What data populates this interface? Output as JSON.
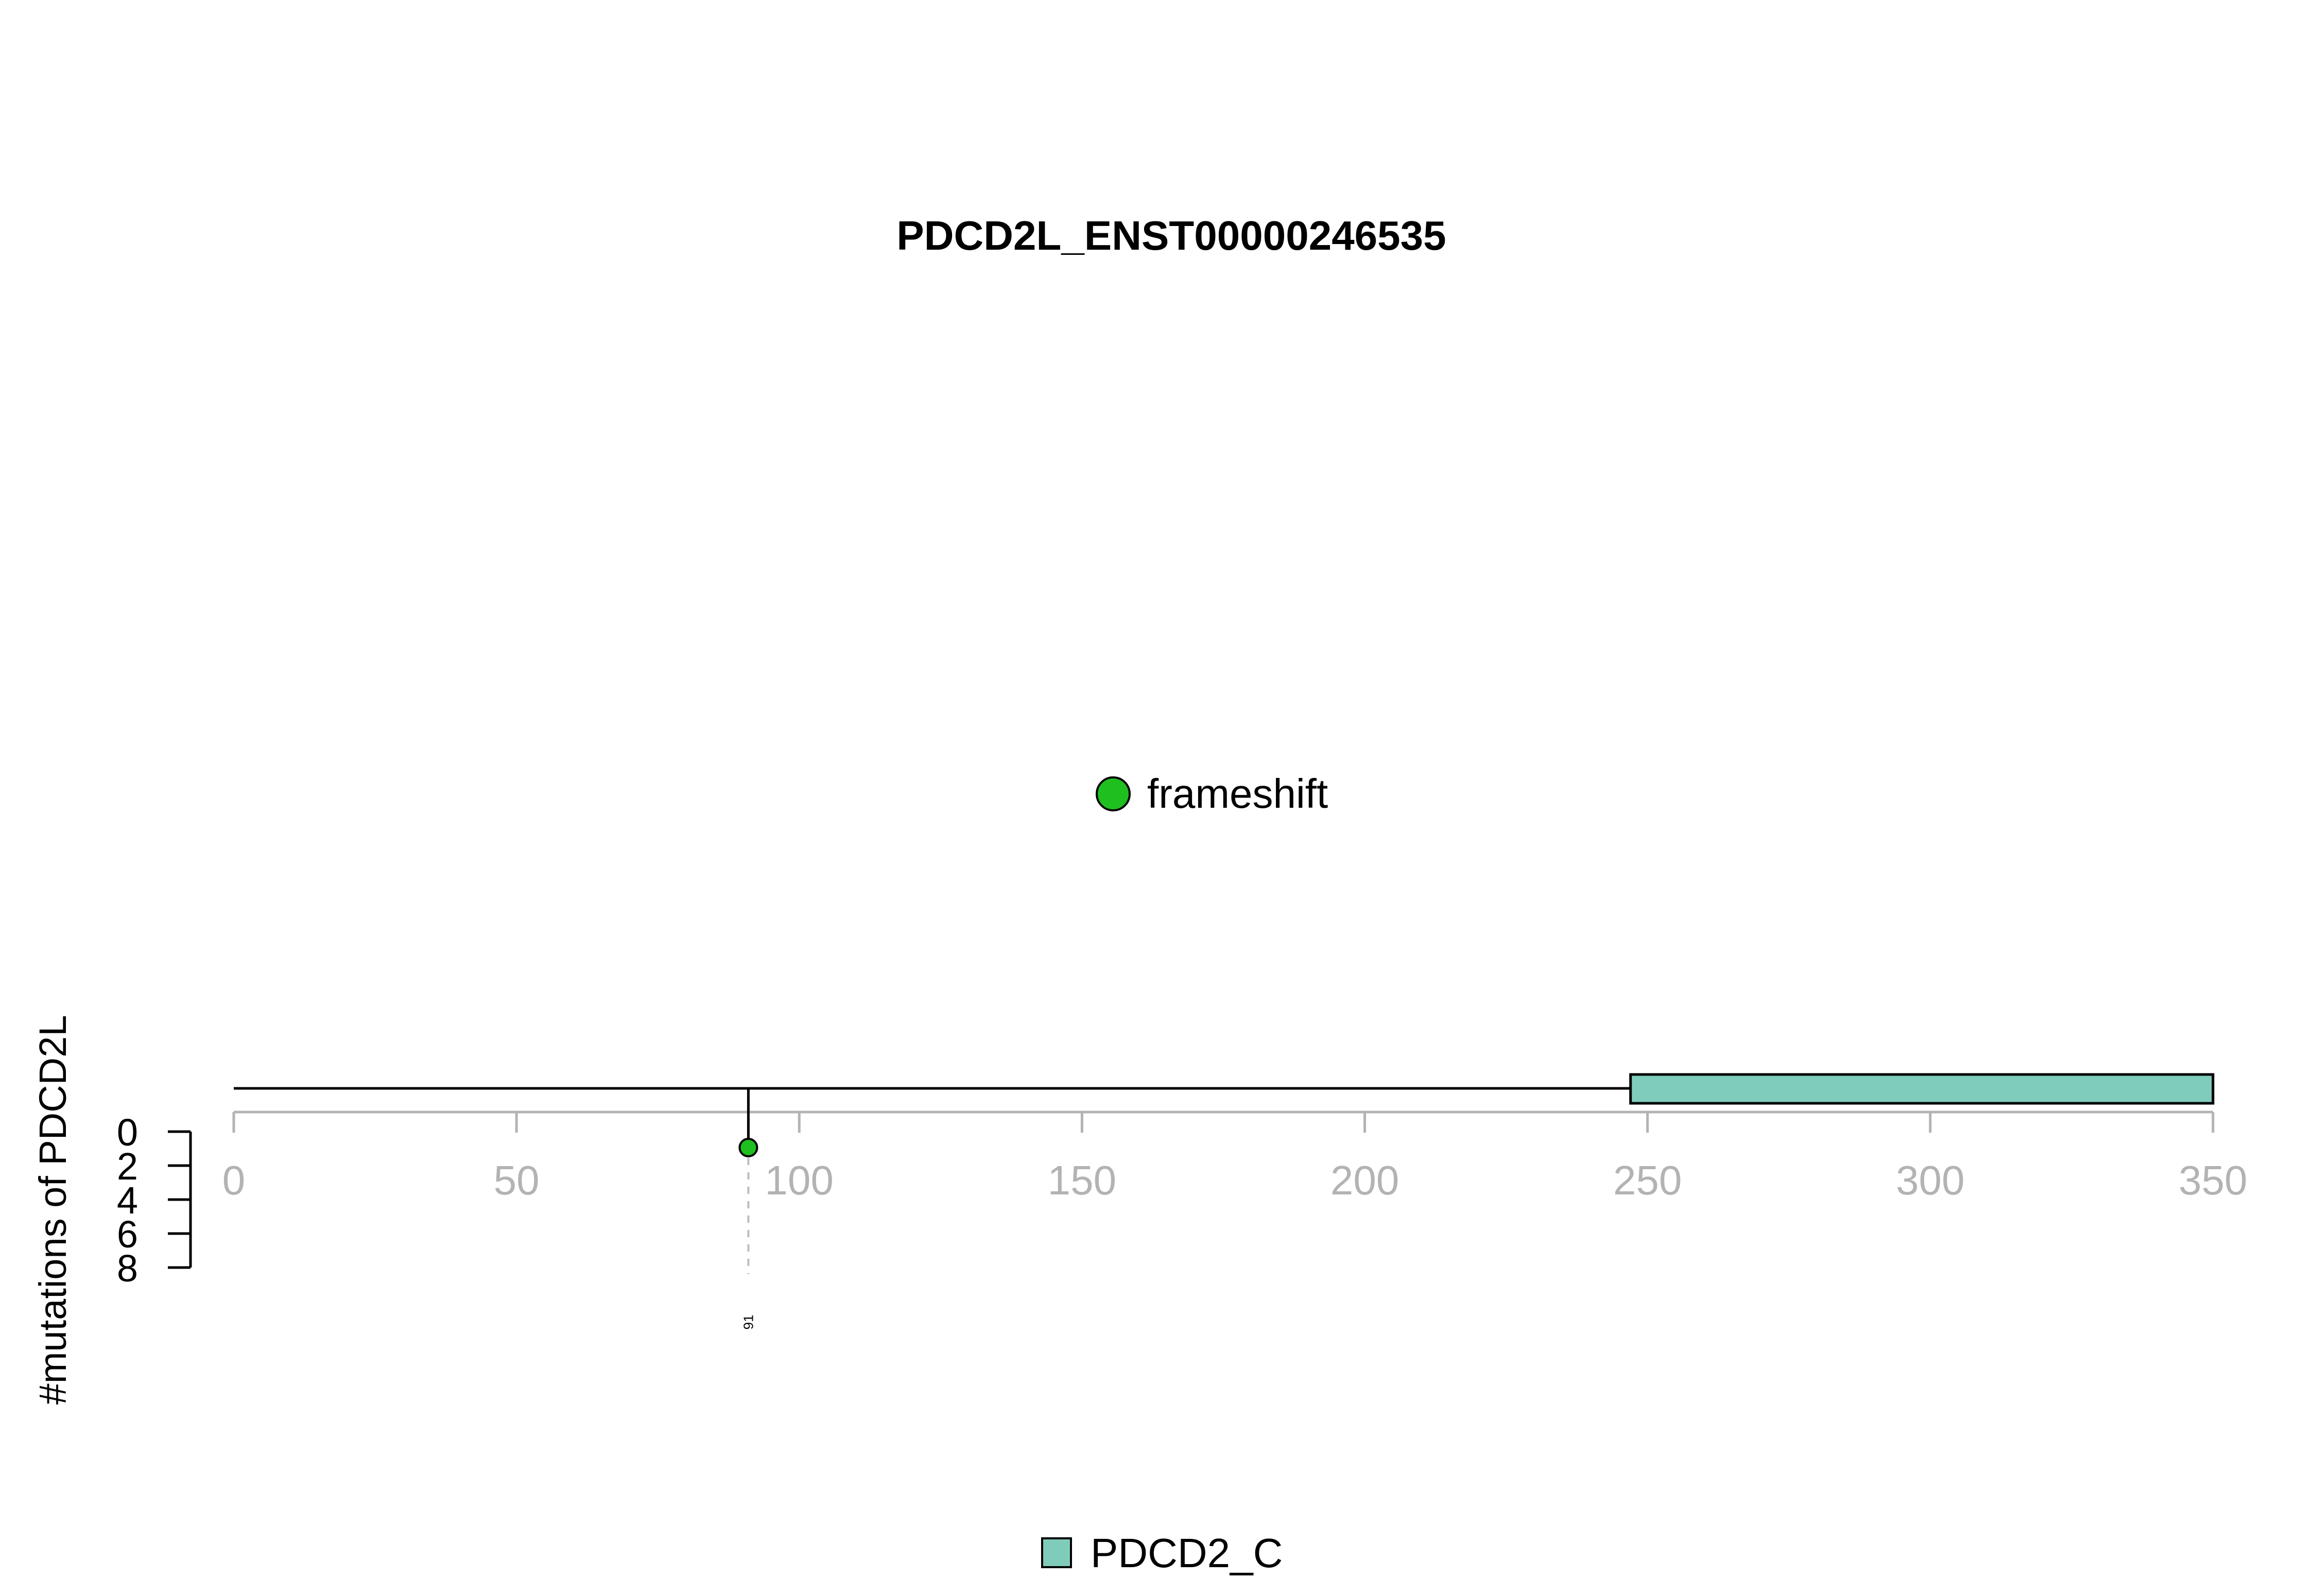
{
  "chart_data": {
    "type": "lollipop",
    "title": "PDCD2L_ENST00000246535",
    "xlabel": "",
    "ylabel": "#mutations of PDCD2L",
    "xlim": [
      0,
      350
    ],
    "x_ticks": [
      0,
      50,
      100,
      150,
      200,
      250,
      300,
      350
    ],
    "ylim": [
      0,
      8
    ],
    "y_ticks": [
      0,
      2,
      4,
      6,
      8
    ],
    "protein_length": 350,
    "mutations": [
      {
        "position": 91,
        "count": 1,
        "type": "frameshift",
        "label": "91"
      }
    ],
    "domains": [
      {
        "name": "PDCD2_C",
        "start": 247,
        "end": 350,
        "color": "#7fccbb"
      }
    ],
    "mutation_legend": [
      {
        "label": "frameshift",
        "color": "#1fbf1f"
      }
    ],
    "domain_legend": [
      {
        "label": "PDCD2_C",
        "color": "#7fccbb"
      }
    ],
    "colors": {
      "axis": "#b3b3b3",
      "dashed": "#bdbdbd"
    }
  }
}
